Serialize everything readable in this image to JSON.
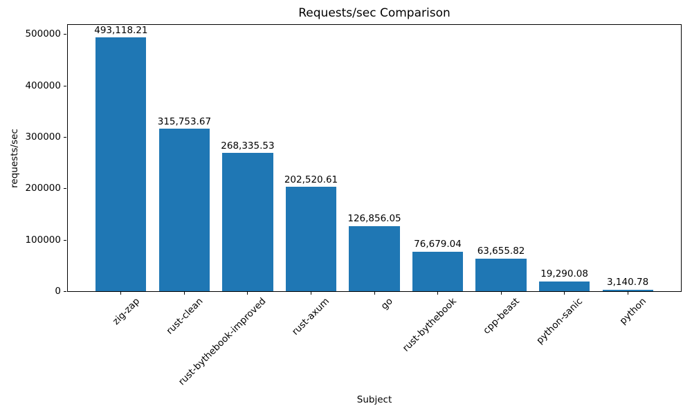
{
  "chart_data": {
    "type": "bar",
    "title": "Requests/sec Comparison",
    "xlabel": "Subject",
    "ylabel": "requests/sec",
    "categories": [
      "zig-zap",
      "rust-clean",
      "rust-bythebook-improved",
      "rust-axum",
      "go",
      "rust-bythebook",
      "cpp-beast",
      "python-sanic",
      "python"
    ],
    "values": [
      493118.21,
      315753.67,
      268335.53,
      202520.61,
      126856.05,
      76679.04,
      63655.82,
      19290.08,
      3140.78
    ],
    "value_labels": [
      "493,118.21",
      "315,753.67",
      "268,335.53",
      "202,520.61",
      "126,856.05",
      "76,679.04",
      "63,655.82",
      "19,290.08",
      "3,140.78"
    ],
    "y_tick_values": [
      0,
      100000,
      200000,
      300000,
      400000,
      500000
    ],
    "y_tick_labels": [
      "0",
      "100000",
      "200000",
      "300000",
      "400000",
      "500000"
    ],
    "ylim": [
      0,
      517774
    ],
    "bar_color": "#1f77b4",
    "axis_color": "#000000",
    "background_color": "#ffffff",
    "grid": false,
    "legend": false
  }
}
